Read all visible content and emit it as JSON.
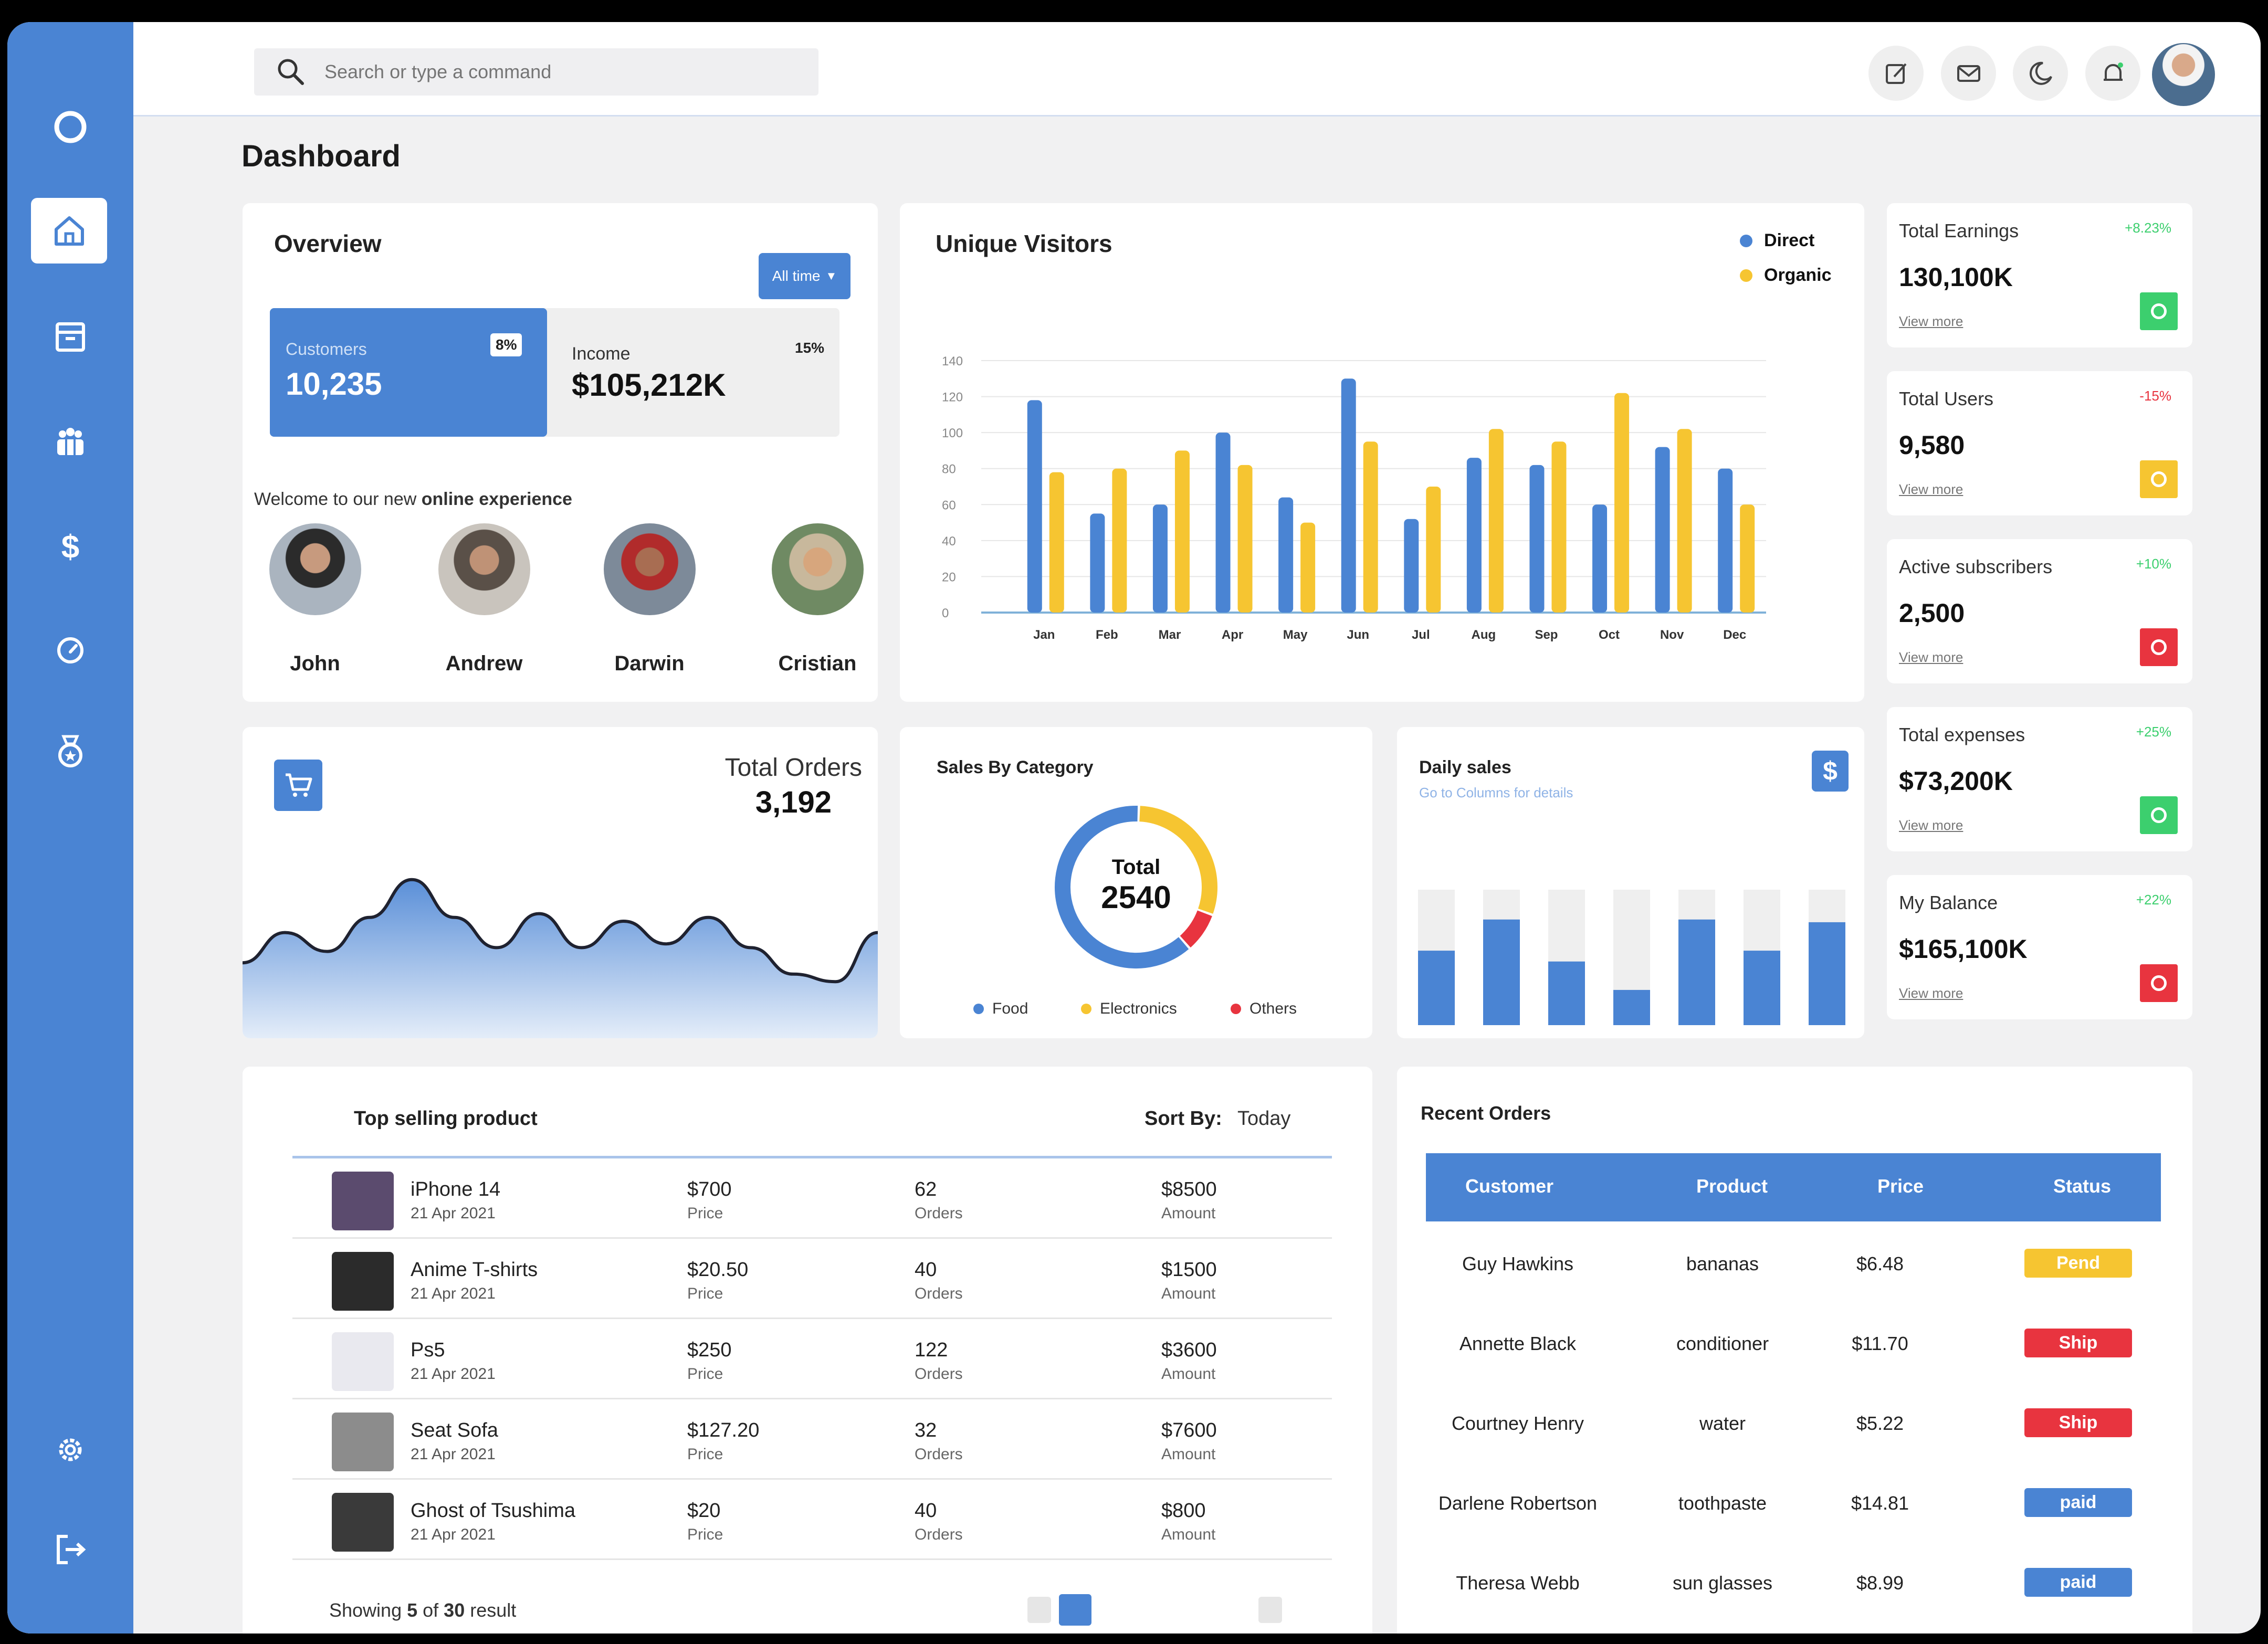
{
  "search": {
    "placeholder": "Search or type a command"
  },
  "page": {
    "title": "Dashboard"
  },
  "sidebar": {
    "items": [
      {
        "icon": "home-icon"
      },
      {
        "icon": "archive-icon"
      },
      {
        "icon": "users-icon"
      },
      {
        "icon": "dollar-icon"
      },
      {
        "icon": "gauge-icon"
      },
      {
        "icon": "badge-icon"
      }
    ],
    "settings_icon": "gear-icon",
    "logout_icon": "logout-icon"
  },
  "topbar_icons": [
    "edit-icon",
    "mail-icon",
    "moon-icon",
    "bell-icon"
  ],
  "overview": {
    "title": "Overview",
    "range_button": "All time",
    "customers_label": "Customers",
    "customers_value": "10,235",
    "customers_pct": "8%",
    "income_label": "Income",
    "income_value": "$105,212K",
    "income_pct": "15%",
    "welcome_text": "Welcome to our new ",
    "welcome_bold": "online experience",
    "people": [
      "John",
      "Andrew",
      "Darwin",
      "Cristian"
    ]
  },
  "visitors": {
    "title": "Unique Visitors",
    "legend": [
      "Direct",
      "Organic"
    ]
  },
  "chart_data": [
    {
      "type": "bar",
      "title": "Unique Visitors",
      "categories": [
        "Jan",
        "Feb",
        "Mar",
        "Apr",
        "May",
        "Jun",
        "Jul",
        "Aug",
        "Sep",
        "Oct",
        "Nov",
        "Dec"
      ],
      "series": [
        {
          "name": "Direct",
          "color": "#4a84d3",
          "values": [
            118,
            55,
            60,
            100,
            64,
            130,
            52,
            86,
            82,
            60,
            92,
            80
          ]
        },
        {
          "name": "Organic",
          "color": "#f6c531",
          "values": [
            78,
            80,
            90,
            82,
            50,
            95,
            70,
            102,
            95,
            122,
            102,
            60
          ]
        }
      ],
      "yticks": [
        "0",
        "20",
        "40",
        "60",
        "80",
        "100",
        "120",
        "140"
      ],
      "ylim": [
        0,
        140
      ]
    },
    {
      "type": "pie",
      "title": "Sales By Category",
      "labels": [
        "Food",
        "Electronics",
        "Others"
      ],
      "colors": [
        "#4a84d3",
        "#f6c531",
        "#e8343f"
      ],
      "values": [
        62,
        30,
        8
      ],
      "center_label": "Total",
      "center_value": "2540"
    },
    {
      "type": "bar",
      "title": "Daily sales",
      "values": [
        55,
        78,
        47,
        26,
        78,
        55,
        76
      ],
      "ylim": [
        0,
        100
      ]
    },
    {
      "type": "area",
      "title": "Total Orders",
      "values": [
        28,
        44,
        34,
        52,
        72,
        52,
        36,
        54,
        36,
        50,
        38,
        52,
        36,
        22,
        18,
        44
      ]
    }
  ],
  "stats": [
    {
      "label": "Total Earnings",
      "change": "+8.23%",
      "direction": "up",
      "value": "130,100K",
      "link": "View more",
      "icon_color": "#3ccf6e"
    },
    {
      "label": "Total Users",
      "change": "-15%",
      "direction": "down",
      "value": "9,580",
      "link": "View more",
      "icon_color": "#f6c531"
    },
    {
      "label": "Active subscribers",
      "change": "+10%",
      "direction": "up",
      "value": "2,500",
      "link": "View more",
      "icon_color": "#e8343f"
    },
    {
      "label": "Total expenses",
      "change": "+25%",
      "direction": "up",
      "value": "$73,200K",
      "link": "View more",
      "icon_color": "#3ccf6e"
    },
    {
      "label": "My Balance",
      "change": "+22%",
      "direction": "up",
      "value": "$165,100K",
      "link": "View more",
      "icon_color": "#e8343f"
    }
  ],
  "orders": {
    "title": "Total Orders",
    "value": "3,192"
  },
  "sales_category": {
    "title": "Sales By Category",
    "center_label": "Total",
    "center_value": "2540",
    "legend": [
      "Food",
      "Electronics",
      "Others"
    ]
  },
  "daily_sales": {
    "title": "Daily sales",
    "subtitle": "Go to Columns for details"
  },
  "top_selling": {
    "title": "Top selling product",
    "sort_label": "Sort By:",
    "sort_value": "Today",
    "caption_price": "Price",
    "caption_orders": "Orders",
    "caption_amount": "Amount",
    "rows": [
      {
        "name": "iPhone 14",
        "date": "21 Apr 2021",
        "price": "$700",
        "orders": "62",
        "amount": "$8500"
      },
      {
        "name": "Anime T-shirts",
        "date": "21 Apr 2021",
        "price": "$20.50",
        "orders": "40",
        "amount": "$1500"
      },
      {
        "name": "Ps5",
        "date": "21 Apr 2021",
        "price": "$250",
        "orders": "122",
        "amount": "$3600"
      },
      {
        "name": "Seat Sofa",
        "date": "21 Apr 2021",
        "price": "$127.20",
        "orders": "32",
        "amount": "$7600"
      },
      {
        "name": "Ghost of Tsushima",
        "date": "21 Apr 2021",
        "price": "$20",
        "orders": "40",
        "amount": "$800"
      }
    ],
    "footer_prefix": "Showing ",
    "footer_shown": "5",
    "footer_mid": " of ",
    "footer_total": "30",
    "footer_suffix": " result"
  },
  "recent_orders": {
    "title": "Recent Orders",
    "columns": [
      "Customer",
      "Product",
      "Price",
      "Status"
    ],
    "rows": [
      {
        "customer": "Guy Hawkins",
        "product": "bananas",
        "price": "$6.48",
        "status": "Pend",
        "status_color": "#f6c531"
      },
      {
        "customer": "Annette Black",
        "product": "conditioner",
        "price": "$11.70",
        "status": "Ship",
        "status_color": "#e8343f"
      },
      {
        "customer": "Courtney Henry",
        "product": "water",
        "price": "$5.22",
        "status": "Ship",
        "status_color": "#e8343f"
      },
      {
        "customer": "Darlene Robertson",
        "product": "toothpaste",
        "price": "$14.81",
        "status": "paid",
        "status_color": "#4a84d3"
      },
      {
        "customer": "Theresa Webb",
        "product": "sun glasses",
        "price": "$8.99",
        "status": "paid",
        "status_color": "#4a84d3"
      }
    ]
  }
}
